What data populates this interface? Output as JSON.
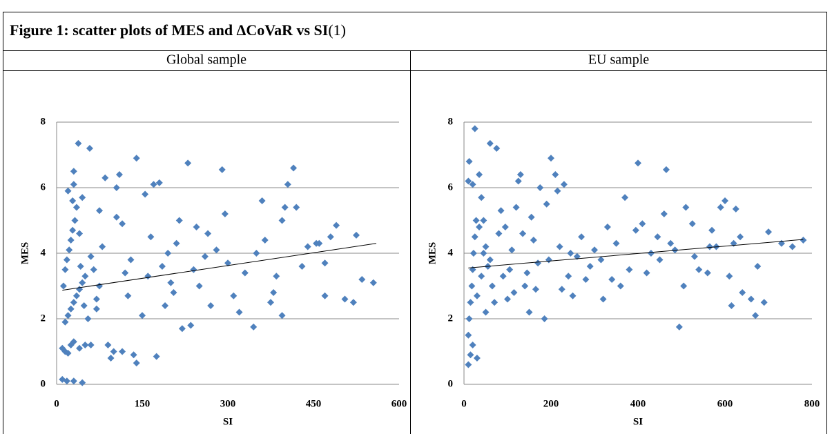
{
  "title": "Figure 1: scatter plots of MES and ΔCoVaR vs SI",
  "title_note": "(1)",
  "columns": [
    "Global sample",
    "EU sample"
  ],
  "chart_data": [
    {
      "type": "scatter",
      "xlabel": "SI",
      "ylabel": "MES",
      "color": "#4f81bd",
      "grid": true,
      "xlim": [
        0,
        600
      ],
      "ylim": [
        0,
        8
      ],
      "xticks": [
        0,
        150,
        300,
        450,
        600
      ],
      "yticks": [
        0,
        2,
        4,
        6,
        8
      ],
      "x": [
        10,
        18,
        30,
        45,
        10,
        15,
        20,
        25,
        30,
        40,
        50,
        60,
        15,
        20,
        25,
        30,
        35,
        40,
        45,
        50,
        12,
        15,
        18,
        22,
        25,
        28,
        32,
        35,
        20,
        28,
        30,
        30,
        38,
        58,
        45,
        40,
        42,
        48,
        55,
        60,
        65,
        70,
        75,
        80,
        85,
        90,
        95,
        100,
        105,
        110,
        115,
        120,
        125,
        130,
        135,
        140,
        140,
        150,
        155,
        160,
        165,
        170,
        175,
        180,
        185,
        190,
        195,
        200,
        205,
        210,
        220,
        230,
        235,
        240,
        245,
        250,
        260,
        270,
        280,
        290,
        295,
        300,
        310,
        320,
        330,
        345,
        360,
        365,
        375,
        385,
        395,
        400,
        405,
        415,
        420,
        430,
        440,
        455,
        470,
        480,
        490,
        505,
        520,
        525,
        535,
        555,
        460,
        470,
        395,
        380,
        350,
        265,
        215,
        105,
        115,
        70,
        75
      ],
      "values": [
        0.15,
        0.1,
        0.1,
        0.05,
        1.1,
        1.0,
        0.95,
        1.2,
        1.3,
        1.1,
        1.2,
        1.2,
        1.9,
        2.1,
        2.3,
        2.5,
        2.7,
        2.9,
        3.1,
        3.3,
        3.0,
        3.5,
        3.8,
        4.1,
        4.4,
        4.7,
        5.0,
        5.4,
        5.9,
        5.6,
        6.1,
        6.5,
        7.35,
        7.2,
        5.7,
        4.6,
        3.6,
        2.4,
        2.0,
        3.9,
        3.5,
        2.6,
        3.0,
        4.2,
        6.3,
        1.2,
        0.8,
        1.0,
        6.0,
        6.4,
        4.9,
        3.4,
        2.7,
        3.8,
        0.9,
        6.9,
        0.65,
        2.1,
        5.8,
        3.3,
        4.5,
        6.1,
        0.85,
        6.15,
        3.6,
        2.4,
        4.0,
        3.1,
        2.8,
        4.3,
        1.7,
        6.75,
        1.8,
        3.5,
        4.8,
        3.0,
        3.9,
        2.4,
        4.1,
        6.55,
        5.2,
        3.7,
        2.7,
        2.2,
        3.4,
        1.75,
        5.6,
        4.4,
        2.5,
        3.3,
        2.1,
        5.4,
        6.1,
        6.6,
        5.4,
        3.6,
        4.2,
        4.3,
        2.7,
        4.5,
        4.85,
        2.6,
        2.5,
        4.55,
        3.2,
        3.1,
        4.3,
        3.7,
        5.0,
        2.8,
        4.0,
        4.6,
        5.0,
        5.1,
        1.0,
        2.3,
        5.3
      ],
      "trend": {
        "x": [
          10,
          560
        ],
        "values": [
          2.87,
          4.3
        ]
      }
    },
    {
      "type": "scatter",
      "xlabel": "SI",
      "ylabel": "MES",
      "color": "#4f81bd",
      "grid": true,
      "xlim": [
        0,
        800
      ],
      "ylim": [
        0,
        8
      ],
      "xticks": [
        0,
        200,
        400,
        600,
        800
      ],
      "yticks": [
        0,
        2,
        4,
        6,
        8
      ],
      "x": [
        10,
        15,
        20,
        30,
        10,
        12,
        15,
        18,
        20,
        22,
        25,
        28,
        10,
        12,
        20,
        25,
        35,
        40,
        45,
        50,
        55,
        60,
        65,
        70,
        75,
        80,
        90,
        100,
        110,
        120,
        125,
        130,
        140,
        150,
        160,
        170,
        175,
        185,
        190,
        200,
        210,
        215,
        220,
        230,
        240,
        250,
        260,
        270,
        280,
        290,
        300,
        320,
        330,
        340,
        360,
        370,
        380,
        395,
        400,
        410,
        430,
        445,
        460,
        465,
        475,
        495,
        505,
        510,
        525,
        540,
        560,
        570,
        580,
        590,
        600,
        615,
        620,
        625,
        635,
        640,
        660,
        670,
        675,
        690,
        700,
        730,
        755,
        780,
        40,
        30,
        50,
        35,
        45,
        60,
        85,
        95,
        105,
        115,
        135,
        145,
        155,
        165,
        195,
        225,
        245,
        315,
        350,
        420,
        450,
        485,
        530,
        565,
        610
      ],
      "values": [
        0.6,
        0.9,
        1.2,
        0.8,
        1.5,
        2.0,
        2.5,
        3.0,
        3.5,
        4.0,
        4.5,
        5.0,
        6.2,
        6.8,
        6.1,
        7.8,
        6.4,
        5.7,
        5.0,
        4.2,
        3.6,
        7.35,
        3.0,
        2.5,
        7.2,
        4.6,
        3.3,
        2.6,
        4.1,
        5.4,
        6.2,
        6.4,
        3.0,
        2.2,
        4.4,
        3.7,
        6.0,
        2.0,
        5.5,
        6.9,
        6.4,
        5.9,
        4.2,
        6.1,
        3.3,
        2.7,
        3.9,
        4.5,
        3.2,
        3.6,
        4.1,
        2.6,
        4.8,
        3.2,
        3.0,
        5.7,
        3.5,
        4.7,
        6.75,
        4.9,
        4.0,
        4.5,
        5.2,
        6.55,
        4.3,
        1.75,
        3.0,
        5.4,
        4.9,
        3.5,
        3.4,
        4.7,
        4.2,
        5.4,
        5.6,
        2.4,
        4.3,
        5.35,
        4.5,
        2.8,
        2.6,
        2.1,
        3.6,
        2.5,
        4.65,
        4.3,
        4.2,
        4.4,
        3.3,
        2.7,
        2.2,
        4.8,
        4.0,
        3.8,
        5.3,
        4.8,
        3.5,
        2.8,
        4.6,
        3.4,
        5.1,
        2.9,
        3.8,
        2.9,
        4.0,
        3.8,
        4.3,
        3.4,
        3.8,
        4.1,
        3.9,
        4.2,
        3.3
      ],
      "trend": {
        "x": [
          10,
          780
        ],
        "values": [
          3.55,
          4.42
        ]
      }
    }
  ]
}
